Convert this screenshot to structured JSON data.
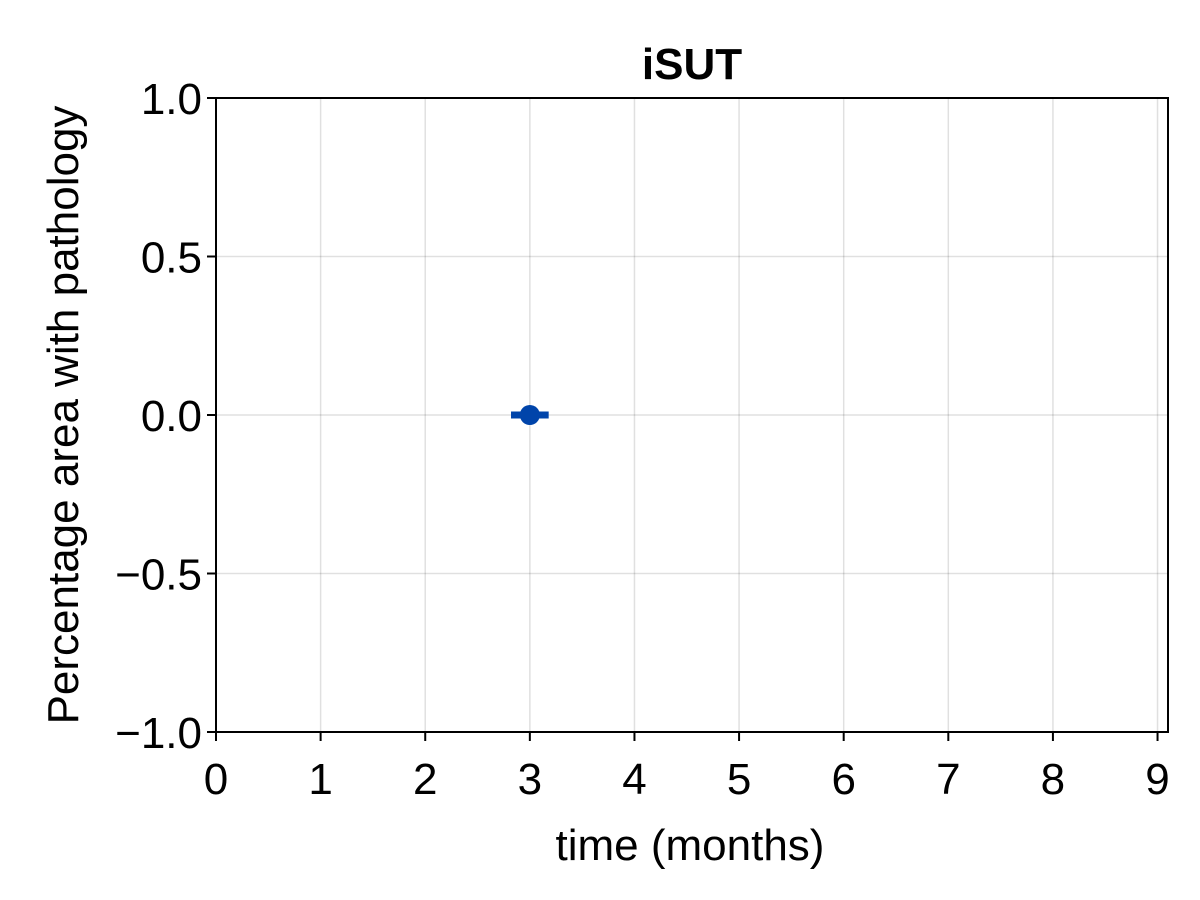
{
  "chart_data": {
    "type": "scatter",
    "title": "iSUT",
    "xlabel": "time (months)",
    "ylabel": "Percentage area with pathology",
    "xlim": [
      0,
      9.1
    ],
    "ylim": [
      -1.0,
      1.0
    ],
    "xticks": [
      0,
      1,
      2,
      3,
      4,
      5,
      6,
      7,
      8,
      9
    ],
    "xtick_labels": [
      "0",
      "1",
      "2",
      "3",
      "4",
      "5",
      "6",
      "7",
      "8",
      "9"
    ],
    "yticks": [
      -1.0,
      -0.5,
      0.0,
      0.5,
      1.0
    ],
    "ytick_labels": [
      "−1.0",
      "−0.5",
      "0.0",
      "0.5",
      "1.0"
    ],
    "grid": true,
    "series": [
      {
        "color": "#0044aa",
        "points": [
          {
            "x": 3,
            "y": 0.0,
            "xerr": 0.18
          }
        ]
      }
    ]
  }
}
